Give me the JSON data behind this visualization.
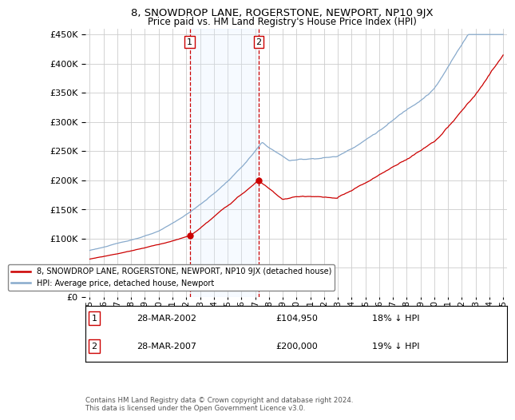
{
  "title": "8, SNOWDROP LANE, ROGERSTONE, NEWPORT, NP10 9JX",
  "subtitle": "Price paid vs. HM Land Registry's House Price Index (HPI)",
  "legend_label_red": "8, SNOWDROP LANE, ROGERSTONE, NEWPORT, NP10 9JX (detached house)",
  "legend_label_blue": "HPI: Average price, detached house, Newport",
  "transaction1_date": "28-MAR-2002",
  "transaction1_price": "£104,950",
  "transaction1_hpi": "18% ↓ HPI",
  "transaction2_date": "28-MAR-2007",
  "transaction2_price": "£200,000",
  "transaction2_hpi": "19% ↓ HPI",
  "footer": "Contains HM Land Registry data © Crown copyright and database right 2024.\nThis data is licensed under the Open Government Licence v3.0.",
  "vline1_x": 2002.25,
  "vline2_x": 2007.25,
  "point1_x": 2002.25,
  "point1_y": 104950,
  "point2_x": 2007.25,
  "point2_y": 200000,
  "ylim": [
    0,
    460000
  ],
  "xlim": [
    1994.7,
    2025.3
  ],
  "red_color": "#cc0000",
  "blue_color": "#88aacc",
  "shade_color": "#ddeeff",
  "vline_color": "#cc0000",
  "background_color": "#ffffff",
  "grid_color": "#cccccc"
}
